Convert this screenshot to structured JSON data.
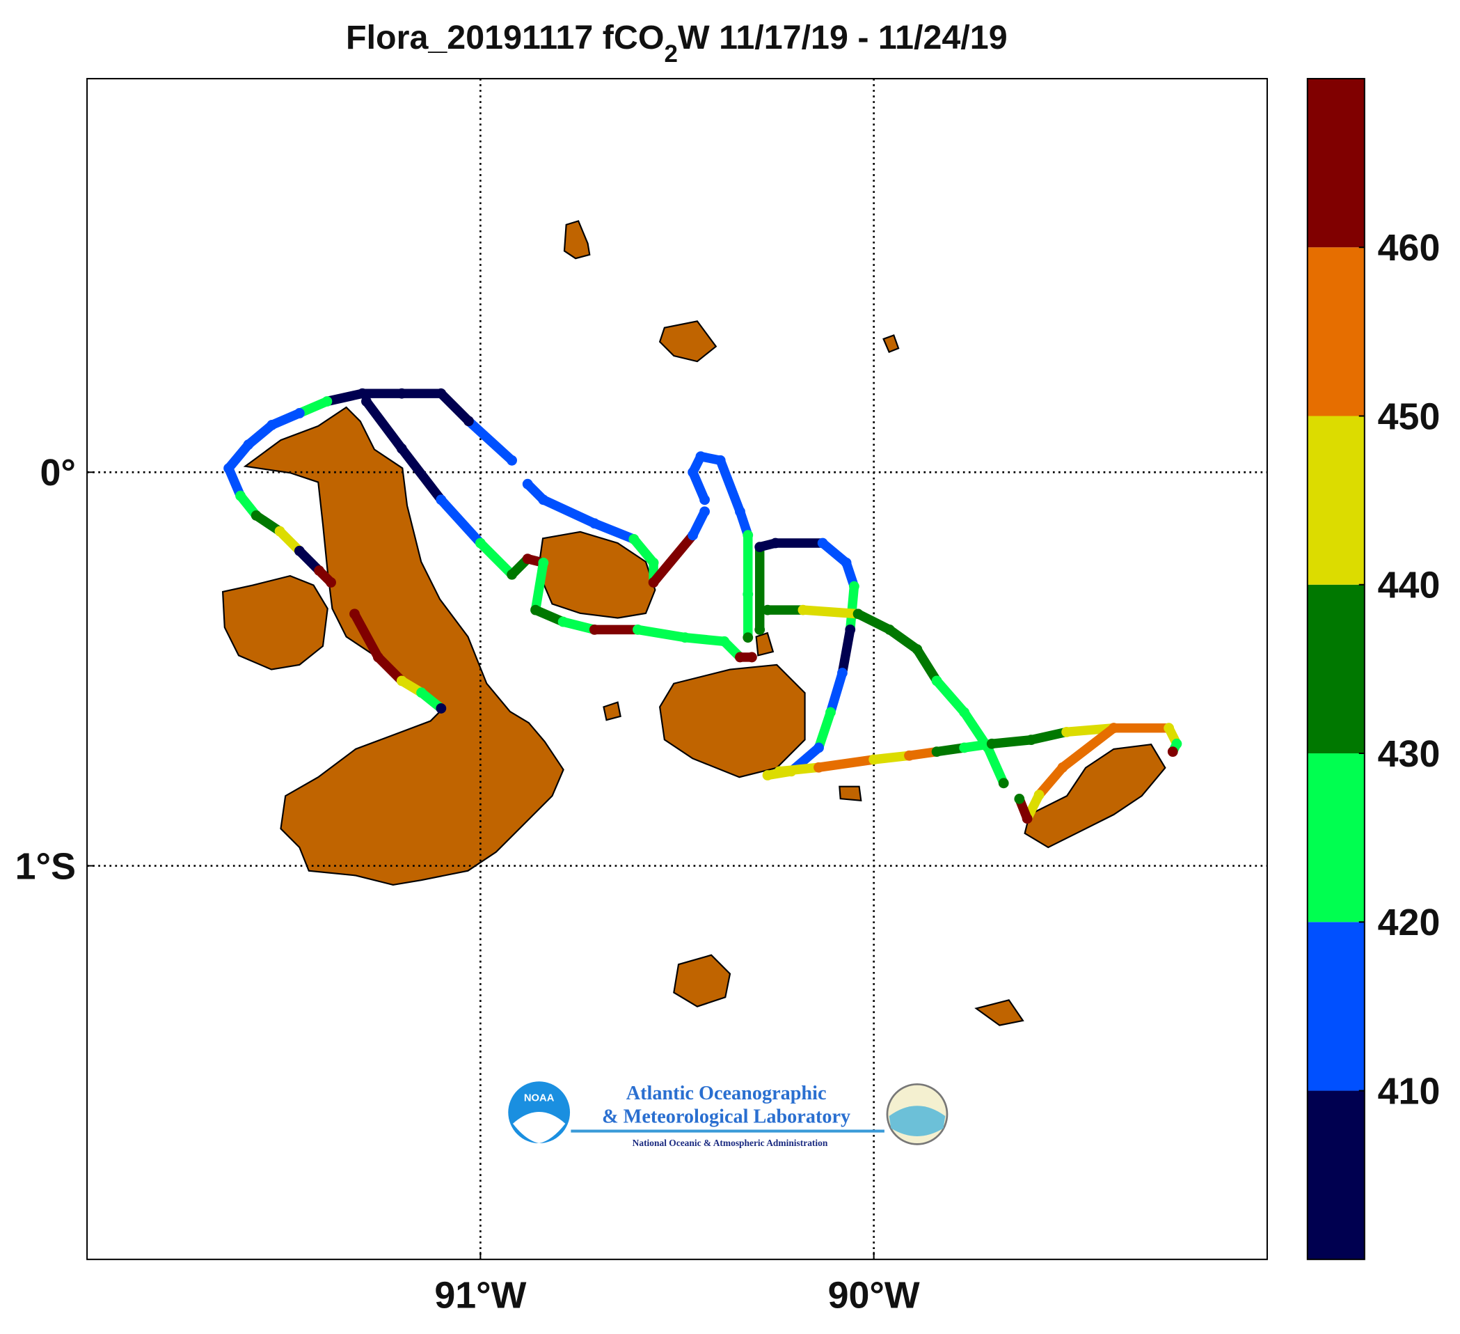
{
  "chart_data": {
    "type": "track-map",
    "title": [
      "Flora_20191117 fCO",
      "2",
      "W 11/17/19 - 11/24/19"
    ],
    "xlim": [
      -92,
      -89
    ],
    "ylim": [
      -2,
      1
    ],
    "xticks": [
      {
        "value": -91,
        "label": "91°W"
      },
      {
        "value": -90,
        "label": "90°W"
      }
    ],
    "yticks": [
      {
        "value": 0,
        "label": "0°"
      },
      {
        "value": -1,
        "label": "1°S"
      }
    ],
    "grid": true,
    "colorbar": {
      "lim": [
        400,
        470
      ],
      "ticks": [
        410,
        420,
        430,
        440,
        450,
        460
      ],
      "colors": [
        "#000050",
        "#0050ff",
        "#00ff50",
        "#007800",
        "#dcdc00",
        "#e66e00",
        "#800000"
      ]
    },
    "track": {
      "lon": [
        -90.92,
        -91.03,
        -91.1,
        -91.2,
        -91.3,
        -91.39,
        -91.46,
        -91.53,
        -91.59,
        -91.64,
        -91.61,
        -91.57,
        -91.51,
        -91.46,
        -91.41,
        -91.38,
        null,
        -91.29,
        -91.2,
        -91.1,
        -91.0,
        -90.92,
        -90.88,
        -90.84,
        -90.86,
        -90.79,
        -90.71,
        -90.6,
        -90.48,
        -90.38,
        -90.34,
        -90.31,
        null,
        -90.88,
        -90.84,
        -90.71,
        -90.61,
        -90.56,
        -90.56,
        -90.46,
        -90.43,
        null,
        -90.43,
        -90.46,
        -90.44,
        -90.39,
        -90.34,
        -90.32,
        -90.32,
        -90.32,
        null,
        -90.29,
        -90.29,
        -90.25,
        -90.13,
        -90.07,
        -90.05,
        -90.06,
        -90.08,
        -90.11,
        -90.14,
        -90.21,
        -90.27,
        null,
        -90.27,
        -90.18,
        -90.04,
        -89.96,
        -89.89,
        -89.84,
        -89.77,
        -89.71,
        -89.67,
        null,
        -90.24,
        -90.14,
        -90.0,
        -89.91,
        -89.84,
        -89.77,
        -89.7,
        -89.6,
        -89.51,
        -89.39,
        -89.25,
        -89.23,
        -89.24,
        null,
        -89.39,
        -89.52,
        -89.58,
        -89.61,
        -89.63,
        null,
        -91.32,
        -91.26,
        -91.2,
        -91.15,
        -91.1
      ],
      "lat": [
        0.03,
        0.13,
        0.2,
        0.2,
        0.2,
        0.18,
        0.15,
        0.12,
        0.07,
        0.01,
        -0.06,
        -0.11,
        -0.15,
        -0.2,
        -0.25,
        -0.28,
        null,
        0.18,
        0.06,
        -0.07,
        -0.18,
        -0.26,
        -0.22,
        -0.23,
        -0.35,
        -0.38,
        -0.4,
        -0.4,
        -0.42,
        -0.43,
        -0.47,
        -0.47,
        null,
        -0.03,
        -0.07,
        -0.13,
        -0.17,
        -0.23,
        -0.28,
        -0.16,
        -0.1,
        null,
        -0.07,
        0.0,
        0.04,
        0.03,
        -0.1,
        -0.16,
        -0.31,
        -0.42,
        null,
        -0.4,
        -0.19,
        -0.18,
        -0.18,
        -0.23,
        -0.29,
        -0.4,
        -0.51,
        -0.61,
        -0.7,
        -0.76,
        -0.77,
        null,
        -0.35,
        -0.35,
        -0.36,
        -0.4,
        -0.45,
        -0.53,
        -0.61,
        -0.7,
        -0.79,
        null,
        -0.76,
        -0.75,
        -0.73,
        -0.72,
        -0.71,
        -0.7,
        -0.69,
        -0.68,
        -0.66,
        -0.65,
        -0.65,
        -0.69,
        -0.71,
        null,
        -0.65,
        -0.75,
        -0.82,
        -0.88,
        -0.83,
        null,
        -0.36,
        -0.47,
        -0.53,
        -0.56,
        -0.6
      ],
      "values": [
        415,
        405,
        405,
        405,
        405,
        425,
        415,
        415,
        415,
        415,
        425,
        435,
        445,
        405,
        465,
        465,
        null,
        405,
        405,
        415,
        425,
        435,
        465,
        425,
        435,
        425,
        465,
        425,
        425,
        425,
        465,
        465,
        null,
        415,
        415,
        415,
        425,
        425,
        465,
        415,
        415,
        null,
        415,
        415,
        415,
        415,
        415,
        425,
        425,
        435,
        null,
        435,
        405,
        405,
        415,
        415,
        425,
        405,
        415,
        425,
        415,
        445,
        445,
        null,
        435,
        445,
        435,
        435,
        435,
        425,
        425,
        425,
        435,
        null,
        445,
        455,
        445,
        455,
        435,
        425,
        435,
        435,
        445,
        455,
        445,
        425,
        465,
        null,
        455,
        455,
        445,
        465,
        435,
        null,
        465,
        465,
        445,
        425,
        405
      ]
    }
  },
  "logo": [
    "NOAA",
    "Atlantic Oceanographic",
    "& Meteorological Laboratory",
    "National Oceanic & Atmospheric Administration"
  ]
}
